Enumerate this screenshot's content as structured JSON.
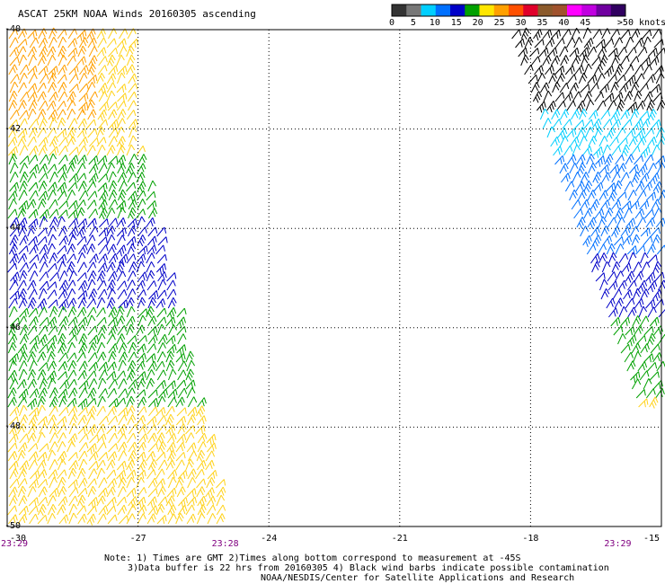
{
  "title": "ASCAT 25KM NOAA Winds 20160305 ascending",
  "colorbar": {
    "labels": [
      "0",
      "5",
      "10",
      "15",
      "20",
      "25",
      "30",
      "35",
      "40",
      "45",
      ">50 knots"
    ],
    "colors": [
      "#333333",
      "#777777",
      "#00cfff",
      "#0070ff",
      "#0000c8",
      "#00a000",
      "#ffe600",
      "#ffa000",
      "#ff5000",
      "#e0002a",
      "#8b5a2b",
      "#a0522d",
      "#ff00ff",
      "#c000e0",
      "#7000a0",
      "#300060"
    ]
  },
  "axes": {
    "lon_ticks": [
      "-30",
      "-27",
      "-24",
      "-21",
      "-18",
      "-15"
    ],
    "lat_ticks": [
      "-40",
      "-42",
      "-44",
      "-46",
      "-48",
      "-50"
    ],
    "time_labels": [
      {
        "text": "23:29",
        "lon": -30
      },
      {
        "text": "23:28",
        "lon": -25
      },
      {
        "text": "23:29",
        "lon": -16
      }
    ]
  },
  "notes": [
    "Note: 1) Times are GMT 2)Times along bottom correspond to measurement at -45S",
    "3)Data buffer is 22 hrs from 20160305 4) Black wind barbs indicate possible contamination",
    "NOAA/NESDIS/Center for Satellite Applications and Research"
  ],
  "map_data": {
    "left_swath": {
      "bands": [
        {
          "lat_range": [
            -40,
            -41.8
          ],
          "speed_knots": 28,
          "color": "#ffa000"
        },
        {
          "lat_range": [
            -40,
            -42.5
          ],
          "speed_knots": 22,
          "color": "#ffd21a"
        },
        {
          "lat_range": [
            -42.5,
            -43.7
          ],
          "speed_knots": 18,
          "color": "#00a000"
        },
        {
          "lat_range": [
            -43.7,
            -45.5
          ],
          "speed_knots": 12,
          "color": "#0000c8"
        },
        {
          "lat_range": [
            -45.5,
            -47.5
          ],
          "speed_knots": 17,
          "color": "#00a000"
        },
        {
          "lat_range": [
            -47.5,
            -50
          ],
          "speed_knots": 22,
          "color": "#ffd21a"
        }
      ]
    },
    "right_swath": {
      "bands": [
        {
          "lat_range": [
            -40,
            -41.5
          ],
          "speed_knots": 40,
          "color": "#000000"
        },
        {
          "lat_range": [
            -41.5,
            -42.5
          ],
          "speed_knots": 6,
          "color": "#00cfff"
        },
        {
          "lat_range": [
            -42.5,
            -44.5
          ],
          "speed_knots": 9,
          "color": "#0070ff"
        },
        {
          "lat_range": [
            -44.5,
            -45.8
          ],
          "speed_knots": 13,
          "color": "#0000c8"
        },
        {
          "lat_range": [
            -45.8,
            -47.3
          ],
          "speed_knots": 17,
          "color": "#00a000"
        },
        {
          "lat_range": [
            -47.3,
            -47.6
          ],
          "speed_knots": 22,
          "color": "#ffd21a"
        }
      ]
    }
  }
}
